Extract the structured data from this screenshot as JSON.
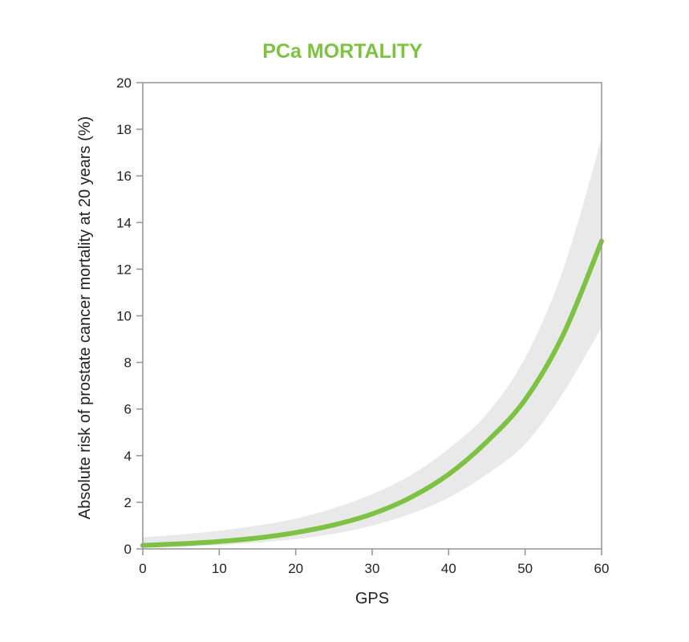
{
  "chart_data": {
    "type": "line",
    "title": "PCa MORTALITY",
    "xlabel": "GPS",
    "ylabel": "Absolute risk of prostate cancer mortality at 20 years (%)",
    "xlim": [
      0,
      60
    ],
    "ylim": [
      0,
      20
    ],
    "xticks": [
      "0",
      "10",
      "20",
      "30",
      "40",
      "50",
      "60"
    ],
    "yticks": [
      "0",
      "2",
      "4",
      "6",
      "8",
      "10",
      "12",
      "14",
      "16",
      "18",
      "20"
    ],
    "grid": false,
    "colors": {
      "line": "#7dc242",
      "band": "#e8e9e8",
      "title": "#7dc242",
      "axis": "#999999"
    },
    "series": [
      {
        "x": [
          0,
          5,
          10,
          15,
          20,
          25,
          30,
          35,
          40,
          45,
          50,
          55,
          60
        ],
        "values": [
          0.15,
          0.22,
          0.32,
          0.47,
          0.7,
          1.03,
          1.5,
          2.2,
          3.2,
          4.6,
          6.4,
          9.2,
          13.2
        ],
        "lower": [
          0.05,
          0.1,
          0.16,
          0.27,
          0.42,
          0.65,
          1.0,
          1.5,
          2.2,
          3.2,
          4.5,
          6.7,
          9.5
        ],
        "upper": [
          0.5,
          0.62,
          0.78,
          1.0,
          1.3,
          1.75,
          2.35,
          3.15,
          4.3,
          5.8,
          8.2,
          12.0,
          17.6
        ]
      }
    ]
  }
}
